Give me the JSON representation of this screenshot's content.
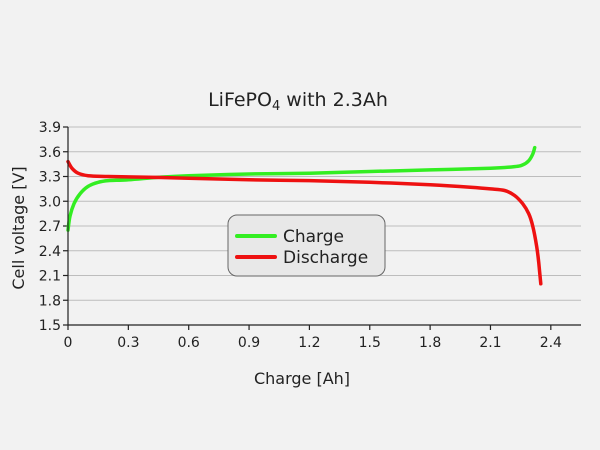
{
  "chart_data": {
    "type": "line",
    "title": "LiFePO4 with 2.3Ah",
    "title_main": "LiFePO",
    "title_sub": "4",
    "title_rest": " with 2.3Ah",
    "xlabel": "Charge [Ah]",
    "ylabel": "Cell voltage [V]",
    "xlim": [
      0,
      2.55
    ],
    "ylim": [
      1.5,
      3.9
    ],
    "xticks": [
      "0",
      "0.3",
      "0.6",
      "0.9",
      "1.2",
      "1.5",
      "1.8",
      "2.1",
      "2.4"
    ],
    "xtick_values": [
      0,
      0.3,
      0.6,
      0.9,
      1.2,
      1.5,
      1.8,
      2.1,
      2.4
    ],
    "yticks": [
      "1.5",
      "1.8",
      "2.1",
      "2.4",
      "2.7",
      "3.0",
      "3.3",
      "3.6",
      "3.9"
    ],
    "ytick_values": [
      1.5,
      1.8,
      2.1,
      2.4,
      2.7,
      3.0,
      3.3,
      3.6,
      3.9
    ],
    "grid": true,
    "legend_position": "center",
    "series": [
      {
        "name": "Charge",
        "color": "#33ee22",
        "points": [
          [
            0.0,
            2.65
          ],
          [
            0.01,
            2.82
          ],
          [
            0.03,
            2.97
          ],
          [
            0.06,
            3.09
          ],
          [
            0.1,
            3.18
          ],
          [
            0.15,
            3.23
          ],
          [
            0.2,
            3.25
          ],
          [
            0.3,
            3.26
          ],
          [
            0.45,
            3.29
          ],
          [
            0.6,
            3.31
          ],
          [
            0.9,
            3.33
          ],
          [
            1.2,
            3.34
          ],
          [
            1.5,
            3.36
          ],
          [
            1.8,
            3.38
          ],
          [
            2.1,
            3.4
          ],
          [
            2.22,
            3.42
          ],
          [
            2.26,
            3.44
          ],
          [
            2.29,
            3.49
          ],
          [
            2.31,
            3.57
          ],
          [
            2.32,
            3.65
          ]
        ]
      },
      {
        "name": "Discharge",
        "color": "#ee1111",
        "points": [
          [
            0.0,
            3.48
          ],
          [
            0.02,
            3.4
          ],
          [
            0.05,
            3.34
          ],
          [
            0.1,
            3.31
          ],
          [
            0.2,
            3.3
          ],
          [
            0.4,
            3.29
          ],
          [
            0.6,
            3.28
          ],
          [
            0.9,
            3.26
          ],
          [
            1.2,
            3.25
          ],
          [
            1.5,
            3.23
          ],
          [
            1.8,
            3.2
          ],
          [
            2.0,
            3.17
          ],
          [
            2.1,
            3.15
          ],
          [
            2.17,
            3.13
          ],
          [
            2.22,
            3.07
          ],
          [
            2.26,
            2.97
          ],
          [
            2.29,
            2.85
          ],
          [
            2.31,
            2.7
          ],
          [
            2.33,
            2.45
          ],
          [
            2.34,
            2.25
          ],
          [
            2.35,
            2.0
          ]
        ]
      }
    ]
  }
}
